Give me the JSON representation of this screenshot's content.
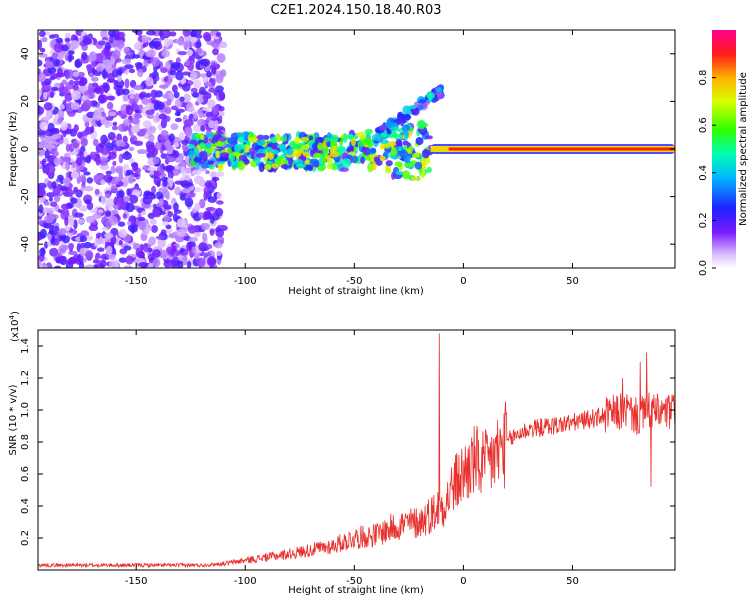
{
  "title": "C2E1.2024.150.18.40.R03",
  "chart_data": [
    {
      "type": "heatmap",
      "xlabel": "Height of straight line (km)",
      "ylabel": "Frequency (Hz)",
      "xlim": [
        -195,
        97
      ],
      "ylim": [
        -50,
        50
      ],
      "x_ticks": [
        -150,
        -100,
        -50,
        0,
        50
      ],
      "y_ticks": [
        -40,
        -20,
        0,
        20,
        40
      ],
      "colorbar": {
        "label": "Normalized spectral amplitude",
        "range": [
          0,
          1
        ],
        "ticks": [
          0.0,
          0.2,
          0.4,
          0.6,
          0.8
        ],
        "colormap": "white-purple-blue-cyan-green-yellow-red-magenta"
      },
      "regions": [
        {
          "name": "noise",
          "x_range": [
            -195,
            -110
          ],
          "y_range": [
            -50,
            50
          ],
          "amplitude": 0.15
        },
        {
          "name": "fragmented-echo",
          "x_range": [
            -125,
            -15
          ],
          "y_range": [
            -12,
            8
          ],
          "amplitude": 0.45
        },
        {
          "name": "upper-branch",
          "x_range": [
            -40,
            -10
          ],
          "y_range": [
            5,
            25
          ],
          "amplitude": 0.3
        },
        {
          "name": "steady-line",
          "x_range": [
            -15,
            97
          ],
          "y_range": [
            -1.5,
            1.5
          ],
          "amplitude": 0.95
        }
      ]
    },
    {
      "type": "line",
      "xlabel": "Height of straight line (km)",
      "ylabel": "SNR (10 * v/v)",
      "y_multiplier": "(x10",
      "y_multiplier_exp": "4",
      "y_multiplier_close": ")",
      "xlim": [
        -195,
        97
      ],
      "ylim": [
        0,
        1.5
      ],
      "x_ticks": [
        -150,
        -100,
        -50,
        0,
        50
      ],
      "y_ticks": [
        0.2,
        0.4,
        0.6,
        0.8,
        1.0,
        1.2,
        1.4
      ],
      "series": [
        {
          "color": "#e8302c",
          "x": [
            -195,
            -150,
            -120,
            -110,
            -100,
            -80,
            -60,
            -50,
            -40,
            -30,
            -20,
            -15,
            -10,
            -7,
            -5,
            0,
            5,
            10,
            15,
            20,
            25,
            30,
            40,
            50,
            60,
            70,
            75,
            80,
            85,
            90,
            97
          ],
          "y": [
            0.03,
            0.03,
            0.03,
            0.04,
            0.06,
            0.1,
            0.15,
            0.2,
            0.22,
            0.28,
            0.3,
            0.35,
            0.4,
            0.45,
            0.52,
            0.6,
            0.68,
            0.65,
            0.72,
            0.8,
            0.85,
            0.88,
            0.9,
            0.92,
            0.95,
            0.98,
            1.0,
            0.95,
            1.0,
            0.98,
            0.99
          ],
          "spikes": [
            {
              "x": -11,
              "y": 1.48
            },
            {
              "x": 73,
              "y": 1.2
            },
            {
              "x": 81,
              "y": 1.3
            },
            {
              "x": 84,
              "y": 1.36
            },
            {
              "x": 86,
              "y": 0.52
            }
          ]
        }
      ]
    }
  ]
}
